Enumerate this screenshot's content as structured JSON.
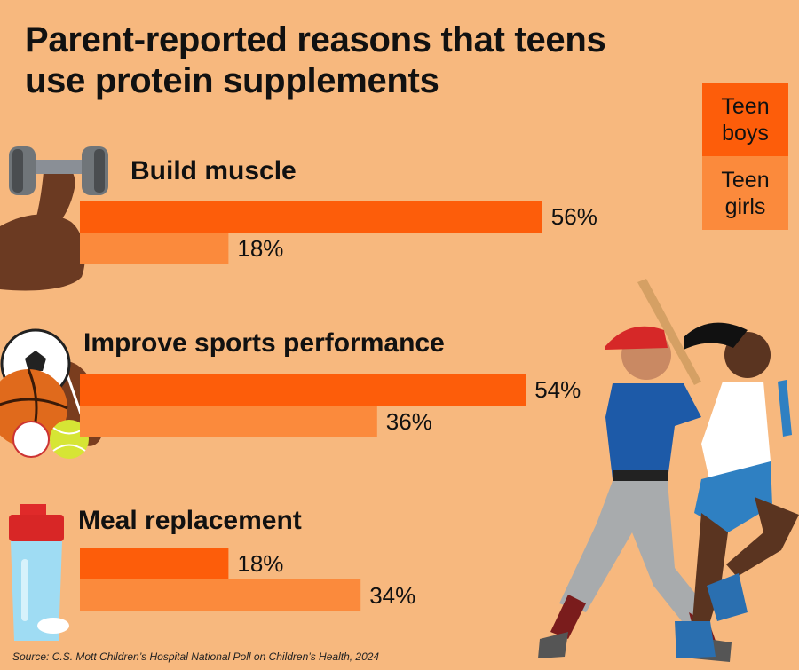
{
  "title": "Parent-reported reasons that teens use protein supplements",
  "legend": [
    {
      "label_line1": "Teen",
      "label_line2": "boys",
      "color": "#fd5d0a"
    },
    {
      "label_line1": "Teen",
      "label_line2": "girls",
      "color": "#fb8a3c"
    }
  ],
  "chart_data": {
    "type": "bar",
    "orientation": "horizontal",
    "categories": [
      "Build muscle",
      "Improve sports performance",
      "Meal replacement"
    ],
    "series": [
      {
        "name": "Teen boys",
        "values": [
          56,
          54,
          18
        ],
        "color": "#fd5d0a"
      },
      {
        "name": "Teen girls",
        "values": [
          18,
          36,
          34
        ],
        "color": "#fb8a3c"
      }
    ],
    "value_labels": [
      [
        "56%",
        "18%"
      ],
      [
        "54%",
        "36%"
      ],
      [
        "18%",
        "34%"
      ]
    ],
    "value_suffix": "%",
    "xlim": [
      0,
      100
    ],
    "grid": false,
    "legend_position": "top-right"
  },
  "source": "Source: C.S. Mott Children’s Hospital National Poll on Children’s Health, 2024",
  "icons": [
    "dumbbell-arm-icon",
    "sports-balls-icon",
    "shaker-bottle-icon",
    "athletes-illustration"
  ]
}
